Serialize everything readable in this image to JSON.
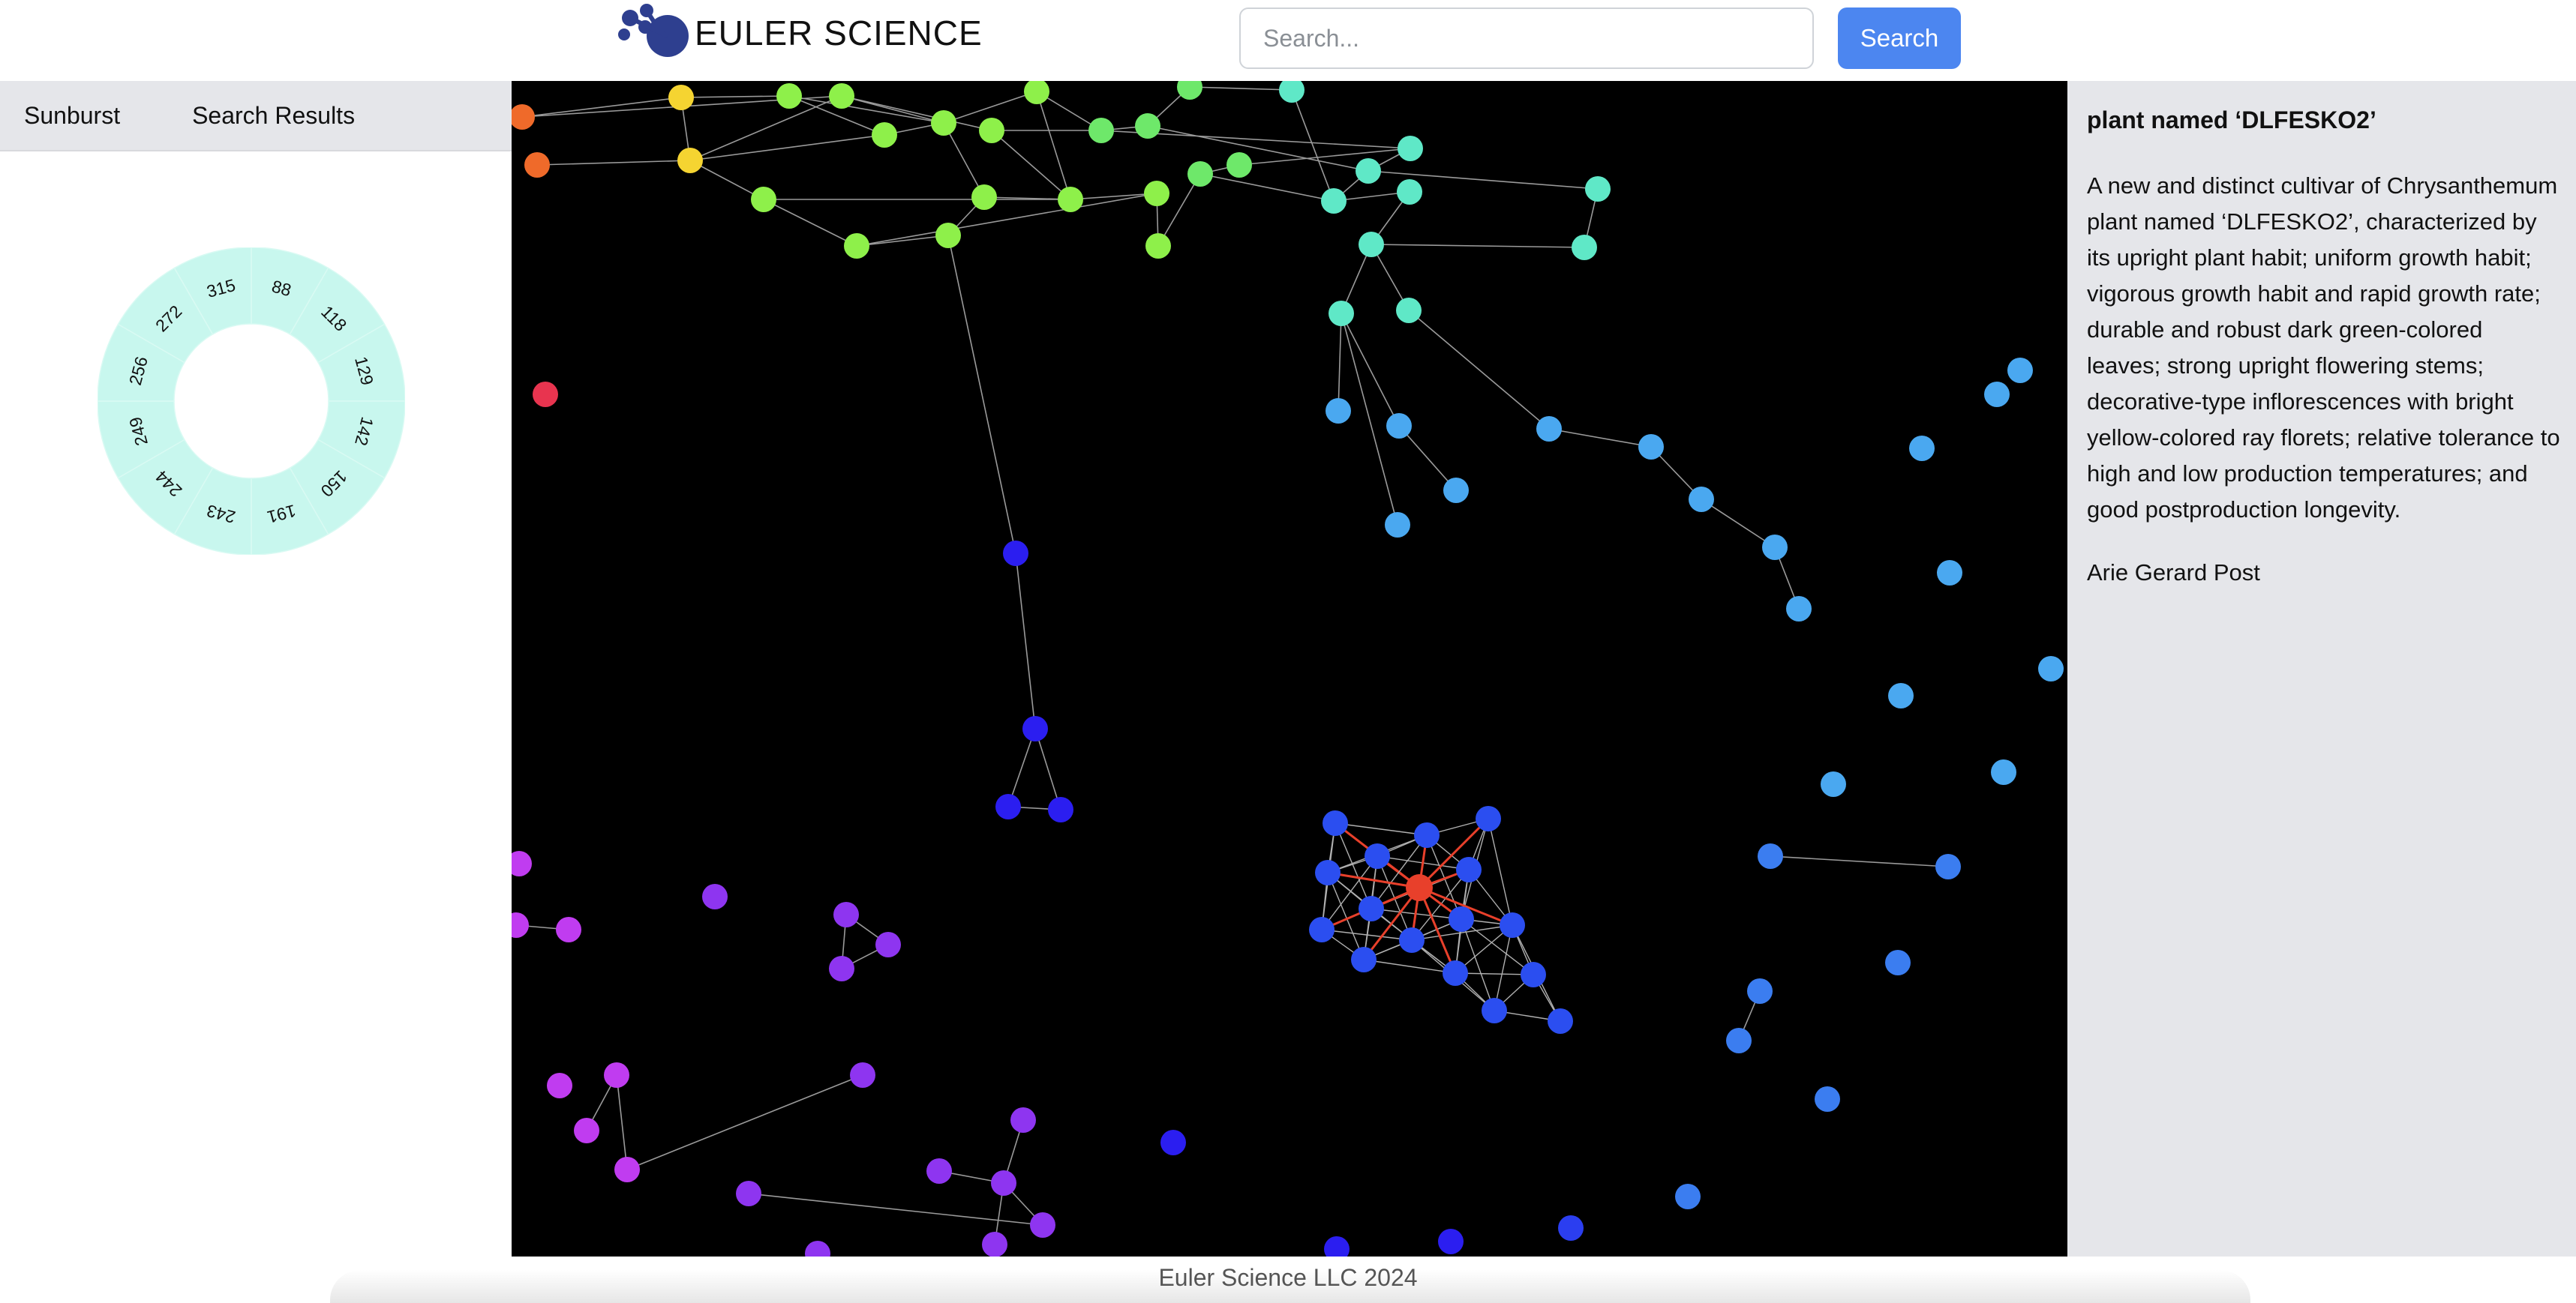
{
  "header": {
    "logo_text": "EULER SCIENCE",
    "search_placeholder": "Search...",
    "search_button": "Search"
  },
  "left_panel": {
    "tabs": [
      "Sunburst",
      "Search Results"
    ],
    "sunburst": {
      "ring_color": "#c8f7ee",
      "labels": [
        "88",
        "118",
        "129",
        "142",
        "150",
        "191",
        "243",
        "244",
        "249",
        "256",
        "272",
        "315"
      ]
    }
  },
  "graph": {
    "background": "#000000",
    "highlight_color": "#e8402b"
  },
  "detail": {
    "title": "plant named ‘DLFESKO2’",
    "abstract": "A new and distinct cultivar of Chrysanthemum plant named ‘DLFESKO2’, characterized by its upright plant habit; uniform growth habit; vigorous growth habit and rapid growth rate; durable and robust dark green-colored leaves; strong upright flowering stems; decorative-type inflorescences with bright yellow-colored ray florets; relative tolerance to high and low production temperatures; and good postproduction longevity.",
    "author": "Arie Gerard Post"
  },
  "footer": {
    "text": "Euler Science LLC 2024"
  }
}
